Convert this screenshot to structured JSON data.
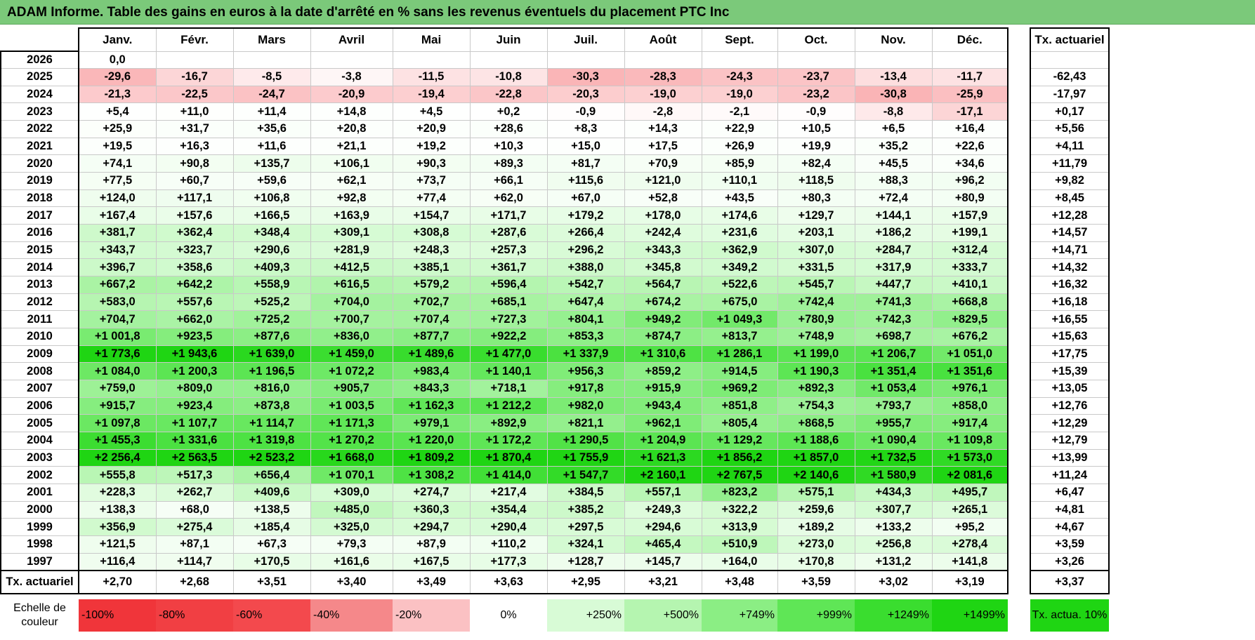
{
  "title": "ADAM Informe. Table des gains en euros à la date d'arrêté en % sans les revenus éventuels du placement PTC Inc",
  "months": [
    "Janv.",
    "Févr.",
    "Mars",
    "Avril",
    "Mai",
    "Juin",
    "Juil.",
    "Août",
    "Sept.",
    "Oct.",
    "Nov.",
    "Déc."
  ],
  "actuarial_header": "Tx. actuariel",
  "rows": [
    {
      "year": "2026",
      "values": [
        "0,0",
        "",
        "",
        "",
        "",
        "",
        "",
        "",
        "",
        "",
        "",
        ""
      ],
      "actuarial": ""
    },
    {
      "year": "2025",
      "values": [
        "-29,6",
        "-16,7",
        "-8,5",
        "-3,8",
        "-11,5",
        "-10,8",
        "-30,3",
        "-28,3",
        "-24,3",
        "-23,7",
        "-13,4",
        "-11,7"
      ],
      "actuarial": "-62,43"
    },
    {
      "year": "2024",
      "values": [
        "-21,3",
        "-22,5",
        "-24,7",
        "-20,9",
        "-19,4",
        "-22,8",
        "-20,3",
        "-19,0",
        "-19,0",
        "-23,2",
        "-30,8",
        "-25,9"
      ],
      "actuarial": "-17,97"
    },
    {
      "year": "2023",
      "values": [
        "+5,4",
        "+11,0",
        "+11,4",
        "+14,8",
        "+4,5",
        "+0,2",
        "-0,9",
        "-2,8",
        "-2,1",
        "-0,9",
        "-8,8",
        "-17,1"
      ],
      "actuarial": "+0,17"
    },
    {
      "year": "2022",
      "values": [
        "+25,9",
        "+31,7",
        "+35,6",
        "+20,8",
        "+20,9",
        "+28,6",
        "+8,3",
        "+14,3",
        "+22,9",
        "+10,5",
        "+6,5",
        "+16,4"
      ],
      "actuarial": "+5,56"
    },
    {
      "year": "2021",
      "values": [
        "+19,5",
        "+16,3",
        "+11,6",
        "+21,1",
        "+19,2",
        "+10,3",
        "+15,0",
        "+17,5",
        "+26,9",
        "+19,9",
        "+35,2",
        "+22,6"
      ],
      "actuarial": "+4,11"
    },
    {
      "year": "2020",
      "values": [
        "+74,1",
        "+90,8",
        "+135,7",
        "+106,1",
        "+90,3",
        "+89,3",
        "+81,7",
        "+70,9",
        "+85,9",
        "+82,4",
        "+45,5",
        "+34,6"
      ],
      "actuarial": "+11,79"
    },
    {
      "year": "2019",
      "values": [
        "+77,5",
        "+60,7",
        "+59,6",
        "+62,1",
        "+73,7",
        "+66,1",
        "+115,6",
        "+121,0",
        "+110,1",
        "+118,5",
        "+88,3",
        "+96,2"
      ],
      "actuarial": "+9,82"
    },
    {
      "year": "2018",
      "values": [
        "+124,0",
        "+117,1",
        "+106,8",
        "+92,8",
        "+77,4",
        "+62,0",
        "+67,0",
        "+52,8",
        "+43,5",
        "+80,3",
        "+72,4",
        "+80,9"
      ],
      "actuarial": "+8,45"
    },
    {
      "year": "2017",
      "values": [
        "+167,4",
        "+157,6",
        "+166,5",
        "+163,9",
        "+154,7",
        "+171,7",
        "+179,2",
        "+178,0",
        "+174,6",
        "+129,7",
        "+144,1",
        "+157,9"
      ],
      "actuarial": "+12,28"
    },
    {
      "year": "2016",
      "values": [
        "+381,7",
        "+362,4",
        "+348,4",
        "+309,1",
        "+308,8",
        "+287,6",
        "+266,4",
        "+242,4",
        "+231,6",
        "+203,1",
        "+186,2",
        "+199,1"
      ],
      "actuarial": "+14,57"
    },
    {
      "year": "2015",
      "values": [
        "+343,7",
        "+323,7",
        "+290,6",
        "+281,9",
        "+248,3",
        "+257,3",
        "+296,2",
        "+343,3",
        "+362,9",
        "+307,0",
        "+284,7",
        "+312,4"
      ],
      "actuarial": "+14,71"
    },
    {
      "year": "2014",
      "values": [
        "+396,7",
        "+358,6",
        "+409,3",
        "+412,5",
        "+385,1",
        "+361,7",
        "+388,0",
        "+345,8",
        "+349,2",
        "+331,5",
        "+317,9",
        "+333,7"
      ],
      "actuarial": "+14,32"
    },
    {
      "year": "2013",
      "values": [
        "+667,2",
        "+642,2",
        "+558,9",
        "+616,5",
        "+579,2",
        "+596,4",
        "+542,7",
        "+564,7",
        "+522,6",
        "+545,7",
        "+447,7",
        "+410,1"
      ],
      "actuarial": "+16,32"
    },
    {
      "year": "2012",
      "values": [
        "+583,0",
        "+557,6",
        "+525,2",
        "+704,0",
        "+702,7",
        "+685,1",
        "+647,4",
        "+674,2",
        "+675,0",
        "+742,4",
        "+741,3",
        "+668,8"
      ],
      "actuarial": "+16,18"
    },
    {
      "year": "2011",
      "values": [
        "+704,7",
        "+662,0",
        "+725,2",
        "+700,7",
        "+707,4",
        "+727,3",
        "+804,1",
        "+949,2",
        "+1 049,3",
        "+780,9",
        "+742,3",
        "+829,5"
      ],
      "actuarial": "+16,55"
    },
    {
      "year": "2010",
      "values": [
        "+1 001,8",
        "+923,5",
        "+877,6",
        "+836,0",
        "+877,7",
        "+922,2",
        "+853,3",
        "+874,7",
        "+813,7",
        "+748,9",
        "+698,7",
        "+676,2"
      ],
      "actuarial": "+15,63"
    },
    {
      "year": "2009",
      "values": [
        "+1 773,6",
        "+1 943,6",
        "+1 639,0",
        "+1 459,0",
        "+1 489,6",
        "+1 477,0",
        "+1 337,9",
        "+1 310,6",
        "+1 286,1",
        "+1 199,0",
        "+1 206,7",
        "+1 051,0"
      ],
      "actuarial": "+17,75"
    },
    {
      "year": "2008",
      "values": [
        "+1 084,0",
        "+1 200,3",
        "+1 196,5",
        "+1 072,2",
        "+983,4",
        "+1 140,1",
        "+956,3",
        "+859,2",
        "+914,5",
        "+1 190,3",
        "+1 351,4",
        "+1 351,6"
      ],
      "actuarial": "+15,39"
    },
    {
      "year": "2007",
      "values": [
        "+759,0",
        "+809,0",
        "+816,0",
        "+905,7",
        "+843,3",
        "+718,1",
        "+917,8",
        "+915,9",
        "+969,2",
        "+892,3",
        "+1 053,4",
        "+976,1"
      ],
      "actuarial": "+13,05"
    },
    {
      "year": "2006",
      "values": [
        "+915,7",
        "+923,4",
        "+873,8",
        "+1 003,5",
        "+1 162,3",
        "+1 212,2",
        "+982,0",
        "+943,4",
        "+851,8",
        "+754,3",
        "+793,7",
        "+858,0"
      ],
      "actuarial": "+12,76"
    },
    {
      "year": "2005",
      "values": [
        "+1 097,8",
        "+1 107,7",
        "+1 114,7",
        "+1 171,3",
        "+979,1",
        "+892,9",
        "+821,1",
        "+962,1",
        "+805,4",
        "+868,5",
        "+955,7",
        "+917,4"
      ],
      "actuarial": "+12,29"
    },
    {
      "year": "2004",
      "values": [
        "+1 455,3",
        "+1 331,6",
        "+1 319,8",
        "+1 270,2",
        "+1 220,0",
        "+1 172,2",
        "+1 290,5",
        "+1 204,9",
        "+1 129,2",
        "+1 188,6",
        "+1 090,4",
        "+1 109,8"
      ],
      "actuarial": "+12,79"
    },
    {
      "year": "2003",
      "values": [
        "+2 256,4",
        "+2 563,5",
        "+2 523,2",
        "+1 668,0",
        "+1 809,2",
        "+1 870,4",
        "+1 755,9",
        "+1 621,3",
        "+1 856,2",
        "+1 857,0",
        "+1 732,5",
        "+1 573,0"
      ],
      "actuarial": "+13,99"
    },
    {
      "year": "2002",
      "values": [
        "+555,8",
        "+517,3",
        "+656,4",
        "+1 070,1",
        "+1 308,2",
        "+1 414,0",
        "+1 547,7",
        "+2 160,1",
        "+2 767,5",
        "+2 140,6",
        "+1 580,9",
        "+2 081,6"
      ],
      "actuarial": "+11,24"
    },
    {
      "year": "2001",
      "values": [
        "+228,3",
        "+262,7",
        "+409,6",
        "+309,0",
        "+274,7",
        "+217,4",
        "+384,5",
        "+557,1",
        "+823,2",
        "+575,1",
        "+434,3",
        "+495,7"
      ],
      "actuarial": "+6,47"
    },
    {
      "year": "2000",
      "values": [
        "+138,3",
        "+68,0",
        "+138,5",
        "+485,0",
        "+360,3",
        "+354,4",
        "+385,2",
        "+249,3",
        "+322,2",
        "+259,6",
        "+307,7",
        "+265,1"
      ],
      "actuarial": "+4,81"
    },
    {
      "year": "1999",
      "values": [
        "+356,9",
        "+275,4",
        "+185,4",
        "+325,0",
        "+294,7",
        "+290,4",
        "+297,5",
        "+294,6",
        "+313,9",
        "+189,2",
        "+133,2",
        "+95,2"
      ],
      "actuarial": "+4,67"
    },
    {
      "year": "1998",
      "values": [
        "+121,5",
        "+87,1",
        "+67,3",
        "+79,3",
        "+87,9",
        "+110,2",
        "+324,1",
        "+465,4",
        "+510,9",
        "+273,0",
        "+256,8",
        "+278,4"
      ],
      "actuarial": "+3,59"
    },
    {
      "year": "1997",
      "values": [
        "+116,4",
        "+114,7",
        "+170,5",
        "+161,6",
        "+167,5",
        "+177,3",
        "+128,7",
        "+145,7",
        "+164,0",
        "+170,8",
        "+131,2",
        "+141,8"
      ],
      "actuarial": "+3,26"
    }
  ],
  "summary": {
    "label": "Tx. actuariel",
    "values": [
      "+2,70",
      "+2,68",
      "+3,51",
      "+3,40",
      "+3,49",
      "+3,63",
      "+2,95",
      "+3,21",
      "+3,48",
      "+3,59",
      "+3,02",
      "+3,19"
    ],
    "actuarial": "+3,37"
  },
  "legend": {
    "label": "Echelle de couleur",
    "items": [
      {
        "label": "-100%",
        "color": "#f0353a"
      },
      {
        "label": "-80%",
        "color": "#f13f43"
      },
      {
        "label": "-60%",
        "color": "#f3494d"
      },
      {
        "label": "-40%",
        "color": "#f5888a"
      },
      {
        "label": "-20%",
        "color": "#fbc1c3"
      },
      {
        "label": "0%",
        "color": "#ffffff"
      },
      {
        "label": "+250%",
        "color": "#d8fbd6"
      },
      {
        "label": "+500%",
        "color": "#b5f5b0"
      },
      {
        "label": "+749%",
        "color": "#8bee84"
      },
      {
        "label": "+999%",
        "color": "#5fe656"
      },
      {
        "label": "+1249%",
        "color": "#3add2f"
      },
      {
        "label": "+1499%",
        "color": "#1fd513"
      }
    ],
    "actuarial_label": "Tx. actua. 10%",
    "actuarial_color": "#1fd513"
  }
}
